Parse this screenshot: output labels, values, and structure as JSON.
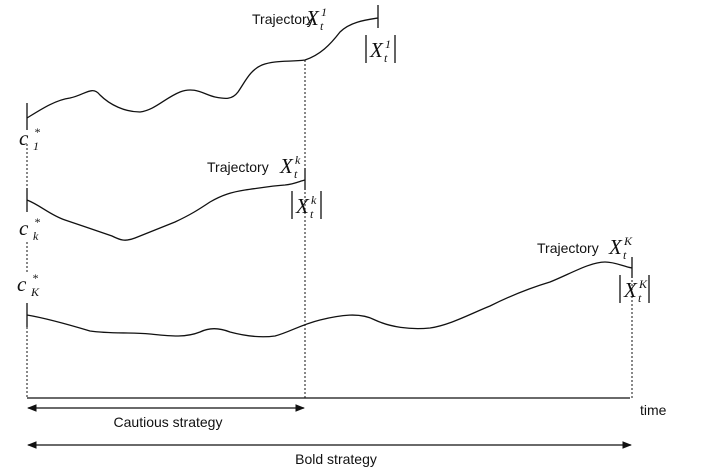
{
  "trajectories": [
    {
      "label": "Trajectory",
      "symbol": "X",
      "sub": "t",
      "sup": "1"
    },
    {
      "label": "Trajectory",
      "symbol": "X",
      "sub": "t",
      "sup": "k"
    },
    {
      "label": "Trajectory",
      "symbol": "X",
      "sub": "t",
      "sup": "K"
    }
  ],
  "abs_labels": [
    {
      "symbol": "X",
      "sub": "t",
      "sup": "1"
    },
    {
      "symbol": "X",
      "sub": "t",
      "sup": "k"
    },
    {
      "symbol": "X",
      "sub": "t",
      "sup": "K"
    }
  ],
  "thresholds": [
    {
      "symbol": "c",
      "sub": "1",
      "sup": "*"
    },
    {
      "symbol": "c",
      "sub": "k",
      "sup": "*"
    },
    {
      "symbol": "c",
      "sub": "K",
      "sup": "*"
    }
  ],
  "axis_label": "time",
  "strategies": [
    "Cautious strategy",
    "Bold strategy"
  ]
}
